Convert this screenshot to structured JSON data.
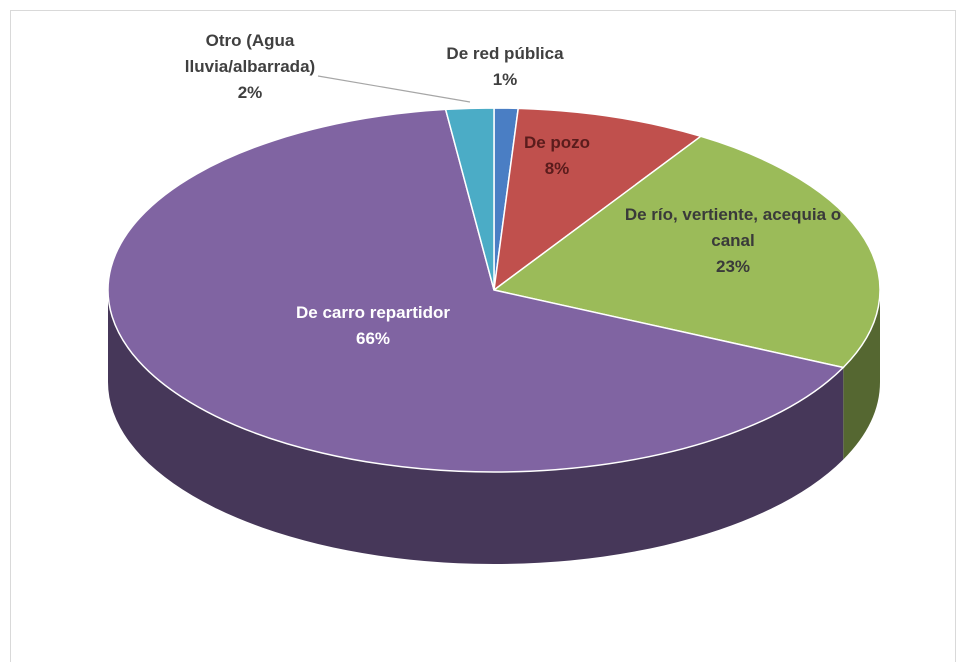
{
  "chart_data": {
    "type": "pie",
    "categories": [
      "De red pública",
      "De pozo",
      "De río, vertiente, acequia o canal",
      "De carro repartidor",
      "Otro (Agua lluvia/albarrada)"
    ],
    "values": [
      1,
      8,
      23,
      66,
      2
    ],
    "value_labels": [
      "1%",
      "8%",
      "23%",
      "66%",
      "2%"
    ],
    "colors": [
      "#4a7ec4",
      "#c0504d",
      "#9bbb59",
      "#8064a2",
      "#4bacc6"
    ]
  }
}
